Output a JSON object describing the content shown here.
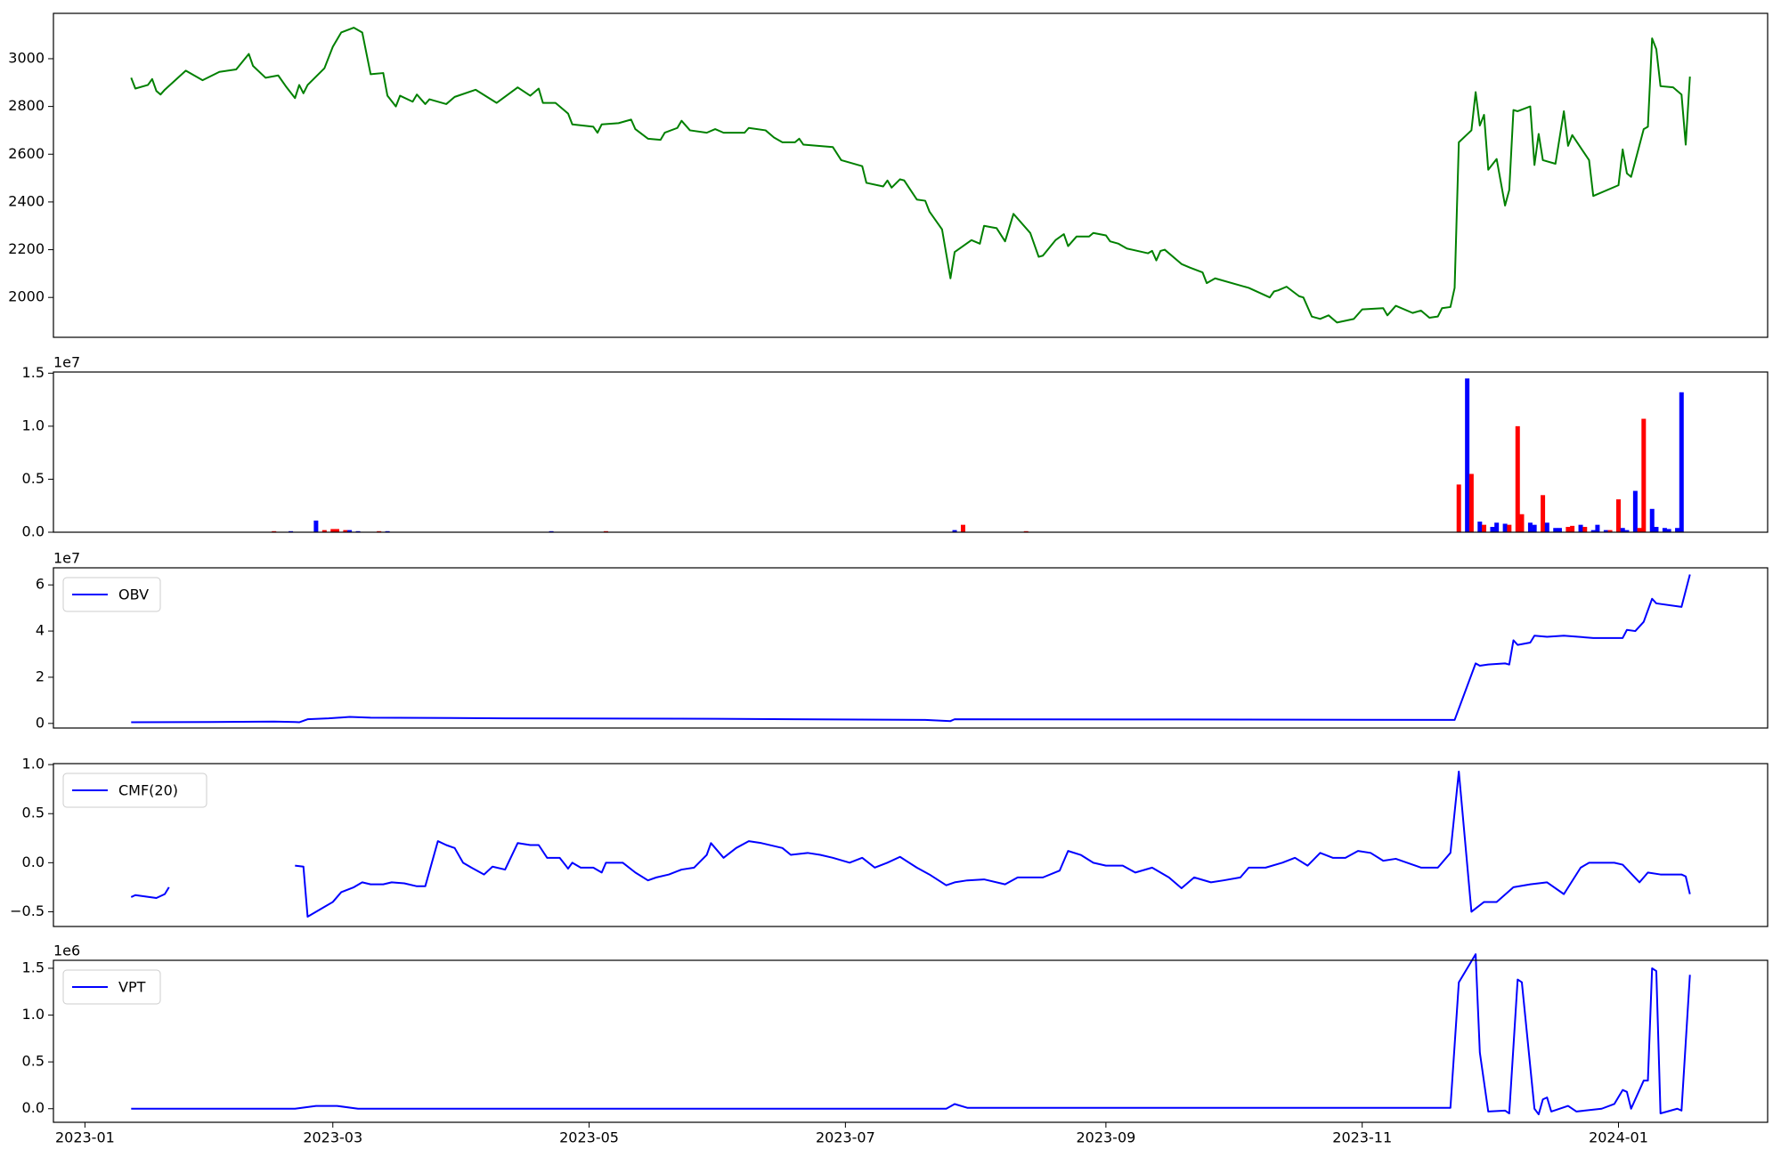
{
  "chart_data": [
    {
      "type": "line",
      "color": "#008000",
      "x": [
        11,
        12,
        15,
        16,
        17,
        18,
        19,
        24,
        28,
        32,
        36,
        39,
        40,
        43,
        46,
        48,
        50,
        51,
        52,
        53,
        57,
        59,
        61,
        64,
        66,
        68,
        71,
        72,
        74,
        75,
        78,
        79,
        81,
        82,
        86,
        88,
        93,
        98,
        103,
        106,
        108,
        109,
        112,
        115,
        116,
        121,
        122,
        123,
        127,
        130,
        131,
        134,
        137,
        138,
        141,
        142,
        144,
        148,
        150,
        152,
        157,
        158,
        162,
        164,
        166,
        169,
        170,
        171,
        178,
        180,
        185,
        186,
        190,
        191,
        192,
        194,
        195,
        198,
        200,
        201,
        204,
        206,
        207,
        211,
        213,
        214,
        217,
        219,
        221,
        225,
        227,
        228,
        231,
        233,
        234,
        236,
        239,
        240,
        243,
        244,
        246,
        248,
        253,
        254,
        255,
        256,
        257,
        261,
        263,
        266,
        267,
        269,
        277,
        282,
        283,
        284,
        286,
        289,
        290,
        292,
        294,
        296,
        298,
        302,
        304,
        309,
        310,
        312,
        316,
        318,
        320,
        322,
        323,
        325,
        326,
        327,
        330,
        331,
        332,
        333,
        334,
        336,
        338,
        339,
        340,
        341,
        344,
        345,
        346,
        347,
        350,
        352,
        353,
        354,
        358,
        359,
        365,
        366,
        367,
        368,
        371,
        372,
        373,
        374,
        375,
        378,
        380,
        381,
        382
      ],
      "values": [
        2920,
        2875,
        2890,
        2915,
        2865,
        2850,
        2870,
        2950,
        2910,
        2945,
        2955,
        3020,
        2970,
        2920,
        2930,
        2880,
        2835,
        2890,
        2855,
        2890,
        2960,
        3050,
        3110,
        3130,
        3110,
        2935,
        2940,
        2845,
        2800,
        2845,
        2820,
        2850,
        2810,
        2830,
        2810,
        2840,
        2870,
        2815,
        2880,
        2845,
        2875,
        2815,
        2815,
        2770,
        2725,
        2715,
        2690,
        2725,
        2730,
        2745,
        2705,
        2665,
        2660,
        2690,
        2710,
        2740,
        2700,
        2690,
        2705,
        2690,
        2690,
        2710,
        2700,
        2670,
        2650,
        2650,
        2665,
        2640,
        2630,
        2575,
        2550,
        2480,
        2465,
        2490,
        2460,
        2495,
        2490,
        2410,
        2405,
        2360,
        2285,
        2080,
        2190,
        2240,
        2225,
        2300,
        2290,
        2235,
        2350,
        2270,
        2170,
        2175,
        2240,
        2265,
        2215,
        2255,
        2255,
        2270,
        2260,
        2235,
        2225,
        2205,
        2185,
        2195,
        2155,
        2195,
        2200,
        2140,
        2125,
        2105,
        2060,
        2080,
        2040,
        2000,
        2025,
        2030,
        2045,
        2005,
        2000,
        1920,
        1910,
        1925,
        1895,
        1910,
        1950,
        1955,
        1925,
        1965,
        1935,
        1945,
        1915,
        1920,
        1955,
        1960,
        2040,
        2650,
        2700,
        2860,
        2720,
        2765,
        2535,
        2580,
        2385,
        2450,
        2785,
        2780,
        2800,
        2555,
        2685,
        2575,
        2560,
        2780,
        2635,
        2680,
        2575,
        2425,
        2470,
        2620,
        2520,
        2505,
        2705,
        2715,
        3085,
        3040,
        2885,
        2880,
        2850,
        2640,
        2925
      ],
      "xlim": [
        -7.5,
        400.5
      ],
      "ylim": [
        1833,
        3190
      ],
      "yticks": [
        2000,
        2200,
        2400,
        2600,
        2800,
        3000
      ]
    },
    {
      "type": "bar",
      "y_offset_label": "1e7",
      "x": [
        45,
        49,
        55,
        57,
        59,
        60,
        62,
        63,
        65,
        70,
        72,
        111,
        124,
        207,
        209,
        224,
        327,
        329,
        330,
        332,
        333,
        335,
        336,
        338,
        339,
        341,
        342,
        344,
        345,
        347,
        348,
        350,
        351,
        353,
        354,
        356,
        357,
        359,
        360,
        362,
        363,
        365,
        366,
        367,
        369,
        370,
        371,
        373,
        374,
        376,
        377,
        379,
        380
      ],
      "values": [
        0.01,
        0.01,
        0.11,
        0.02,
        0.03,
        0.03,
        0.02,
        0.02,
        0.01,
        0.01,
        0.01,
        0.01,
        0.01,
        0.02,
        0.07,
        0.01,
        0.45,
        1.45,
        0.55,
        0.1,
        0.07,
        0.05,
        0.09,
        0.08,
        0.07,
        1.0,
        0.17,
        0.09,
        0.07,
        0.35,
        0.09,
        0.04,
        0.04,
        0.05,
        0.06,
        0.07,
        0.05,
        0.02,
        0.07,
        0.02,
        0.02,
        0.31,
        0.04,
        0.02,
        0.39,
        0.04,
        1.07,
        0.22,
        0.05,
        0.04,
        0.03,
        0.04,
        1.32
      ],
      "colors": [
        "red",
        "blue",
        "blue",
        "red",
        "red",
        "red",
        "red",
        "blue",
        "blue",
        "red",
        "blue",
        "blue",
        "red",
        "blue",
        "red",
        "red",
        "red",
        "blue",
        "red",
        "blue",
        "red",
        "blue",
        "blue",
        "blue",
        "red",
        "red",
        "red",
        "blue",
        "blue",
        "red",
        "blue",
        "blue",
        "blue",
        "red",
        "red",
        "blue",
        "red",
        "blue",
        "blue",
        "blue",
        "red",
        "red",
        "blue",
        "blue",
        "blue",
        "red",
        "red",
        "blue",
        "blue",
        "blue",
        "blue",
        "blue",
        "blue"
      ],
      "xlim": [
        -7.5,
        400.5
      ],
      "ylim": [
        0,
        1.511
      ],
      "yticks": [
        {
          "value": 0,
          "label": "0.0"
        },
        {
          "value": 0.5,
          "label": "0.5"
        },
        {
          "value": 1,
          "label": "1.0"
        },
        {
          "value": 1.5,
          "label": "1.5"
        }
      ]
    },
    {
      "type": "line",
      "y_offset_label": "1e7",
      "legend": "upper left",
      "x": [
        11,
        30,
        45,
        50,
        51,
        53,
        58,
        63,
        68,
        100,
        150,
        200,
        206,
        207,
        260,
        326,
        331,
        332,
        334,
        338,
        339,
        340,
        341,
        344,
        345,
        348,
        352,
        359,
        366,
        367,
        369,
        371,
        373,
        374,
        380,
        382
      ],
      "series": [
        {
          "name": "OBV",
          "color": "#0000ff",
          "values": [
            0.05,
            0.06,
            0.08,
            0.06,
            0.05,
            0.18,
            0.22,
            0.28,
            0.25,
            0.22,
            0.2,
            0.15,
            0.1,
            0.18,
            0.17,
            0.15,
            2.6,
            2.5,
            2.55,
            2.6,
            2.55,
            3.6,
            3.4,
            3.5,
            3.8,
            3.75,
            3.8,
            3.7,
            3.7,
            4.05,
            4.0,
            4.4,
            5.4,
            5.2,
            5.05,
            6.45
          ]
        }
      ],
      "xlim": [
        -7.5,
        400.5
      ],
      "ylim": [
        -0.2,
        6.74
      ],
      "yticks": [
        0,
        2,
        4,
        6
      ]
    },
    {
      "type": "line",
      "legend": "upper left",
      "x": [
        11,
        12,
        17,
        19,
        20,
        35,
        50,
        52,
        53,
        59,
        61,
        64,
        66,
        68,
        71,
        73,
        76,
        79,
        81,
        84,
        86,
        88,
        90,
        92,
        95,
        97,
        100,
        103,
        106,
        108,
        110,
        113,
        115,
        116,
        118,
        121,
        123,
        124,
        128,
        131,
        134,
        136,
        139,
        142,
        145,
        148,
        149,
        152,
        155,
        158,
        161,
        166,
        168,
        172,
        175,
        178,
        182,
        185,
        188,
        191,
        194,
        198,
        201,
        205,
        207,
        210,
        214,
        219,
        222,
        228,
        232,
        234,
        237,
        240,
        243,
        247,
        250,
        254,
        258,
        261,
        264,
        268,
        271,
        275,
        277,
        281,
        285,
        288,
        291,
        294,
        297,
        300,
        303,
        306,
        309,
        312,
        318,
        322,
        325,
        327,
        330,
        333,
        336,
        340,
        344,
        348,
        352,
        356,
        358,
        364,
        366,
        370,
        372,
        375,
        380,
        381,
        382
      ],
      "series": [
        {
          "name": "CMF(20)",
          "color": "#0000ff",
          "values": [
            -0.35,
            -0.33,
            -0.36,
            -0.32,
            -0.25,
            null,
            -0.03,
            -0.04,
            -0.55,
            -0.4,
            -0.3,
            -0.25,
            -0.2,
            -0.22,
            -0.22,
            -0.2,
            -0.21,
            -0.24,
            -0.24,
            0.22,
            0.18,
            0.15,
            0.0,
            -0.05,
            -0.12,
            -0.04,
            -0.07,
            0.2,
            0.18,
            0.18,
            0.05,
            0.05,
            -0.06,
            0.0,
            -0.05,
            -0.05,
            -0.1,
            0.0,
            0.0,
            -0.1,
            -0.18,
            -0.15,
            -0.12,
            -0.07,
            -0.05,
            0.08,
            0.2,
            0.05,
            0.15,
            0.22,
            0.2,
            0.15,
            0.08,
            0.1,
            0.08,
            0.05,
            0.0,
            0.05,
            -0.05,
            0.0,
            0.06,
            -0.05,
            -0.12,
            -0.23,
            -0.2,
            -0.18,
            -0.17,
            -0.22,
            -0.15,
            -0.15,
            -0.08,
            0.12,
            0.08,
            0.0,
            -0.03,
            -0.03,
            -0.1,
            -0.05,
            -0.15,
            -0.26,
            -0.15,
            -0.2,
            -0.18,
            -0.15,
            -0.05,
            -0.05,
            0.0,
            0.05,
            -0.03,
            0.1,
            0.05,
            0.05,
            0.12,
            0.1,
            0.02,
            0.04,
            -0.05,
            -0.05,
            0.1,
            0.93,
            -0.5,
            -0.4,
            -0.4,
            -0.25,
            -0.22,
            -0.2,
            -0.32,
            -0.05,
            0.0,
            0.0,
            -0.02,
            -0.2,
            -0.1,
            -0.12,
            -0.12,
            -0.14,
            -0.32
          ]
        }
      ],
      "xlim": [
        -7.5,
        400.5
      ],
      "ylim": [
        -0.65,
        1.01
      ],
      "yticks": [
        {
          "value": -0.5,
          "label": "−0.5"
        },
        {
          "value": 0,
          "label": "0.0"
        },
        {
          "value": 0.5,
          "label": "0.5"
        },
        {
          "value": 1,
          "label": "1.0"
        }
      ]
    },
    {
      "type": "line",
      "y_offset_label": "1e6",
      "legend": "upper left",
      "x": [
        11,
        50,
        55,
        60,
        65,
        205,
        207,
        210,
        325,
        327,
        331,
        332,
        334,
        338,
        339,
        341,
        342,
        345,
        346,
        347,
        348,
        349,
        353,
        355,
        361,
        364,
        366,
        367,
        368,
        371,
        372,
        373,
        374,
        375,
        379,
        380,
        382
      ],
      "series": [
        {
          "name": "VPT",
          "color": "#0000ff",
          "values": [
            0.0,
            0.0,
            0.03,
            0.03,
            0.0,
            0.0,
            0.05,
            0.01,
            0.01,
            1.35,
            1.65,
            0.6,
            -0.03,
            -0.02,
            -0.05,
            1.38,
            1.35,
            0.0,
            -0.06,
            0.1,
            0.12,
            -0.03,
            0.03,
            -0.03,
            0.0,
            0.05,
            0.2,
            0.18,
            0.0,
            0.3,
            0.3,
            1.5,
            1.47,
            -0.05,
            0.0,
            -0.02,
            1.43
          ]
        }
      ],
      "xlim": [
        -7.5,
        400.5
      ],
      "ylim": [
        -0.145,
        1.585
      ],
      "yticks": [
        {
          "value": 0,
          "label": "0.0"
        },
        {
          "value": 0.5,
          "label": "0.5"
        },
        {
          "value": 1,
          "label": "1.0"
        },
        {
          "value": 1.5,
          "label": "1.5"
        }
      ],
      "xticks": [
        {
          "value": 0,
          "label": "2023-01"
        },
        {
          "value": 59,
          "label": "2023-03"
        },
        {
          "value": 120,
          "label": "2023-05"
        },
        {
          "value": 181,
          "label": "2023-07"
        },
        {
          "value": 243,
          "label": "2023-09"
        },
        {
          "value": 304,
          "label": "2023-11"
        },
        {
          "value": 365,
          "label": "2024-01"
        }
      ]
    }
  ]
}
